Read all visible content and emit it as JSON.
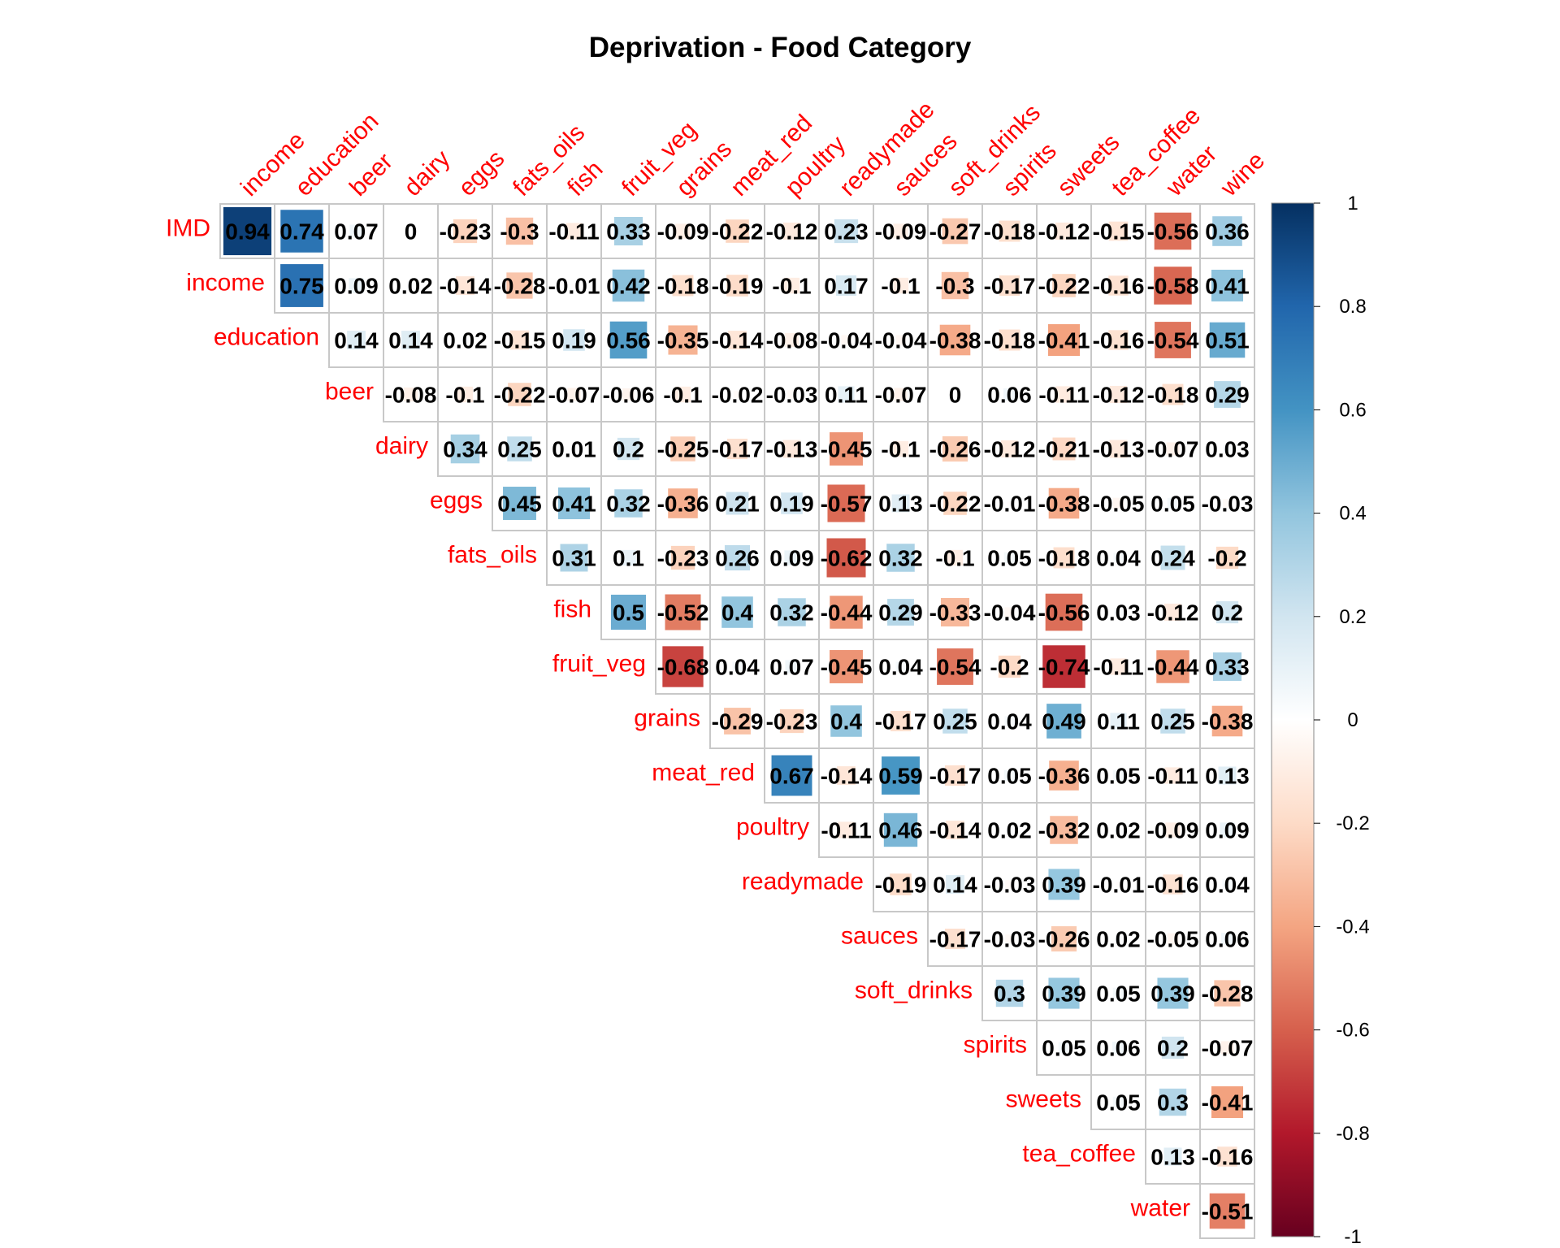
{
  "chart_data": {
    "type": "heatmap",
    "title": "Deprivation - Food Category",
    "row_labels": [
      "IMD",
      "income",
      "education",
      "beer",
      "dairy",
      "eggs",
      "fats_oils",
      "fish",
      "fruit_veg",
      "grains",
      "meat_red",
      "poultry",
      "readymade",
      "sauces",
      "soft_drinks",
      "spirits",
      "sweets",
      "tea_coffee",
      "water"
    ],
    "col_labels": [
      "income",
      "education",
      "beer",
      "dairy",
      "eggs",
      "fats_oils",
      "fish",
      "fruit_veg",
      "grains",
      "meat_red",
      "poultry",
      "readymade",
      "sauces",
      "soft_drinks",
      "spirits",
      "sweets",
      "tea_coffee",
      "water",
      "wine"
    ],
    "values": [
      [
        0.94,
        0.74,
        0.07,
        0,
        -0.23,
        -0.3,
        -0.11,
        0.33,
        -0.09,
        -0.22,
        -0.12,
        0.23,
        -0.09,
        -0.27,
        -0.18,
        -0.12,
        -0.15,
        -0.56,
        0.36
      ],
      [
        0.75,
        0.09,
        0.02,
        -0.14,
        -0.28,
        -0.01,
        0.42,
        -0.18,
        -0.19,
        -0.1,
        0.17,
        -0.1,
        -0.3,
        -0.17,
        -0.22,
        -0.16,
        -0.58,
        0.41
      ],
      [
        0.14,
        0.14,
        0.02,
        -0.15,
        0.19,
        0.56,
        -0.35,
        -0.14,
        -0.08,
        -0.04,
        -0.04,
        -0.38,
        -0.18,
        -0.41,
        -0.16,
        -0.54,
        0.51
      ],
      [
        -0.08,
        -0.1,
        -0.22,
        -0.07,
        -0.06,
        -0.1,
        -0.02,
        -0.03,
        0.11,
        -0.07,
        0,
        0.06,
        -0.11,
        -0.12,
        -0.18,
        0.29
      ],
      [
        0.34,
        0.25,
        0.01,
        0.2,
        -0.25,
        -0.17,
        -0.13,
        -0.45,
        -0.1,
        -0.26,
        -0.12,
        -0.21,
        -0.13,
        -0.07,
        0.03
      ],
      [
        0.45,
        0.41,
        0.32,
        -0.36,
        0.21,
        0.19,
        -0.57,
        0.13,
        -0.22,
        -0.01,
        -0.38,
        -0.05,
        0.05,
        -0.03
      ],
      [
        0.31,
        0.1,
        -0.23,
        0.26,
        0.09,
        -0.62,
        0.32,
        -0.1,
        0.05,
        -0.18,
        0.04,
        0.24,
        -0.2
      ],
      [
        0.5,
        -0.52,
        0.4,
        0.32,
        -0.44,
        0.29,
        -0.33,
        -0.04,
        -0.56,
        0.03,
        -0.12,
        0.2
      ],
      [
        -0.68,
        0.04,
        0.07,
        -0.45,
        0.04,
        -0.54,
        -0.2,
        -0.74,
        -0.11,
        -0.44,
        0.33
      ],
      [
        -0.29,
        -0.23,
        0.4,
        -0.17,
        0.25,
        0.04,
        0.49,
        0.11,
        0.25,
        -0.38
      ],
      [
        0.67,
        -0.14,
        0.59,
        -0.17,
        0.05,
        -0.36,
        0.05,
        -0.11,
        0.13
      ],
      [
        -0.11,
        0.46,
        -0.14,
        0.02,
        -0.32,
        0.02,
        -0.09,
        0.09
      ],
      [
        -0.19,
        0.14,
        -0.03,
        0.39,
        -0.01,
        -0.16,
        0.04
      ],
      [
        -0.17,
        -0.03,
        -0.26,
        0.02,
        -0.05,
        0.06
      ],
      [
        0.3,
        0.39,
        0.05,
        0.39,
        -0.28
      ],
      [
        0.05,
        0.06,
        0.2,
        -0.07
      ],
      [
        0.05,
        0.3,
        -0.41
      ],
      [
        0.13,
        -0.16
      ],
      [
        -0.51
      ]
    ],
    "legend_range": [
      -1,
      1
    ],
    "legend_ticks": [
      "1",
      "0.8",
      "0.6",
      "0.4",
      "0.2",
      "0",
      "-0.2",
      "-0.4",
      "-0.6",
      "-0.8",
      "-1"
    ],
    "legend_placement": "right",
    "colors": {
      "label": "#ff0000",
      "grid": "#c8c8c8",
      "scale": [
        "#67001f",
        "#b2182b",
        "#d6604d",
        "#f4a582",
        "#fddbc7",
        "#ffffff",
        "#d1e5f0",
        "#92c5de",
        "#4393c3",
        "#2166ac",
        "#053061"
      ]
    }
  }
}
